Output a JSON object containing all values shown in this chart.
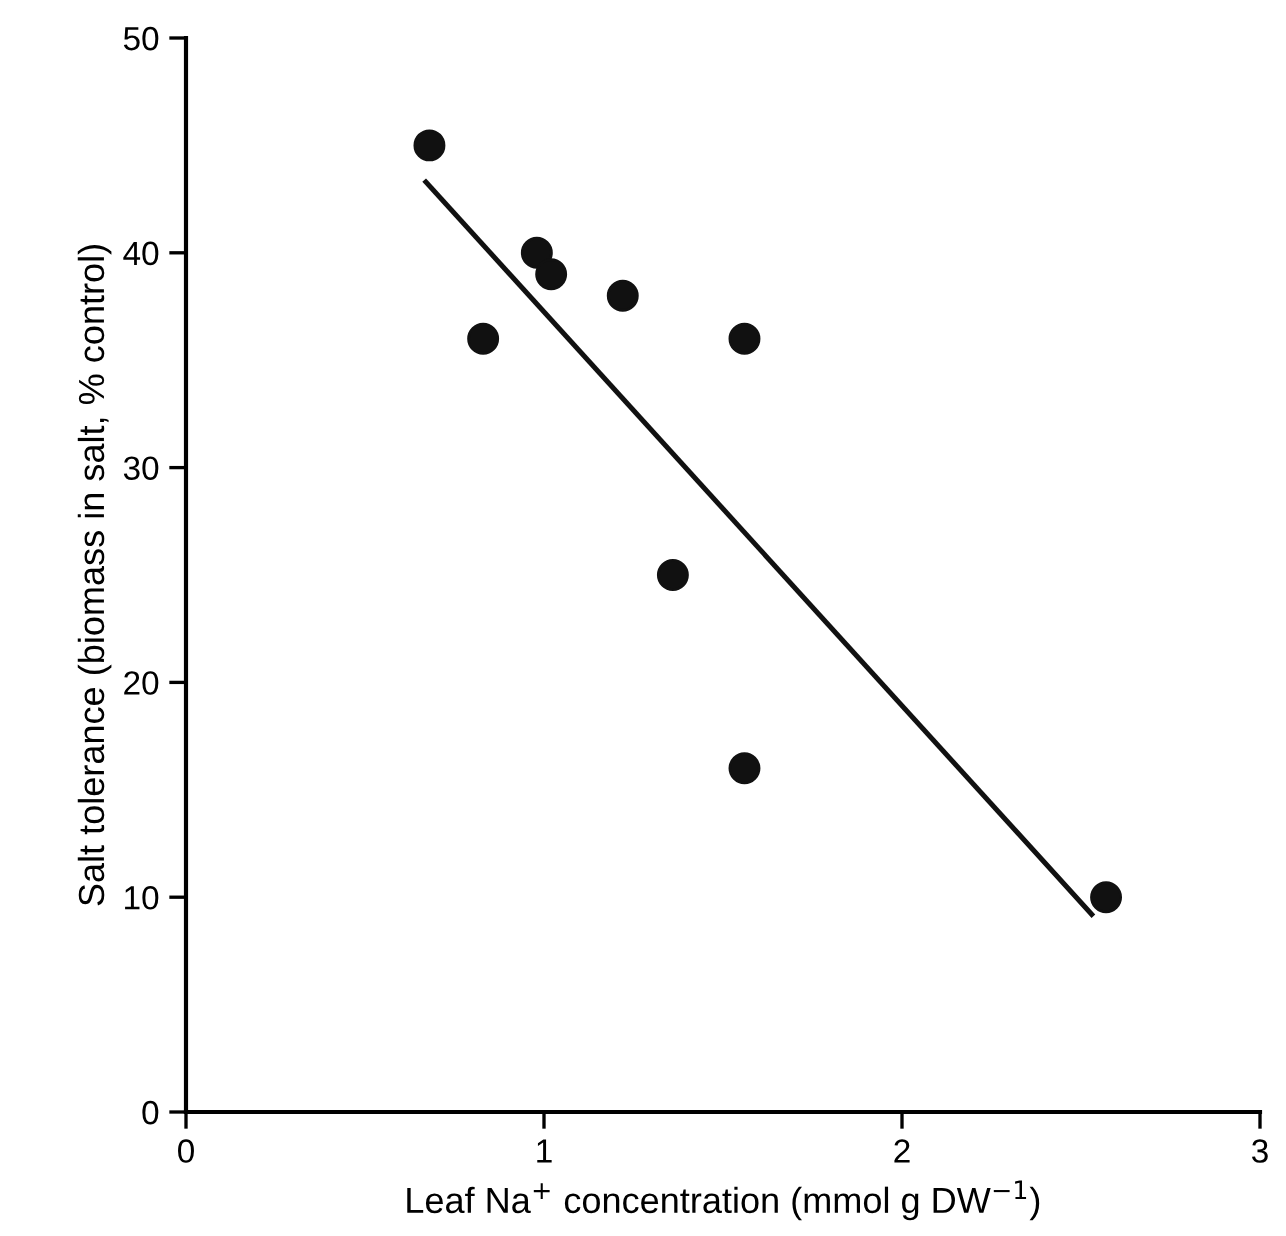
{
  "chart_data": {
    "type": "scatter",
    "xlabel": "Leaf Na$^{+}$ concentration (mmol g DW$^{−1}$)",
    "ylabel": "Salt tolerance (biomass in salt, % control)",
    "xlim": [
      0,
      3
    ],
    "ylim": [
      0,
      50
    ],
    "xticks": [
      0,
      1,
      2,
      3
    ],
    "yticks": [
      0,
      10,
      20,
      30,
      40,
      50
    ],
    "grid": false,
    "marker": "circle",
    "series": [
      {
        "color": "#111111",
        "x": [
          0.68,
          0.83,
          0.98,
          1.02,
          1.22,
          1.56,
          1.36,
          1.56,
          2.57
        ],
        "values": [
          45,
          36,
          40,
          39,
          38,
          36,
          25,
          16,
          10
        ]
      },
      {
        "type": "line",
        "color": "#111111",
        "x": [
          0.67,
          2.53
        ],
        "values": [
          43.3,
          9.2
        ],
        "marker": "none",
        "line_style": "solid"
      }
    ]
  }
}
